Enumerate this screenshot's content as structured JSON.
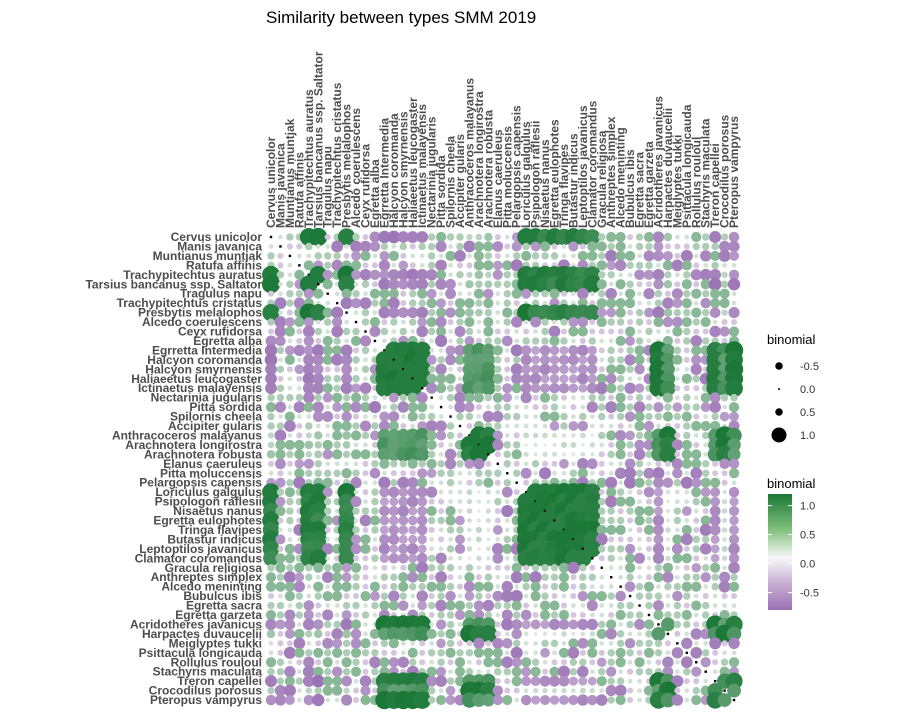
{
  "chart_data": {
    "type": "heatmap",
    "title": "Similarity between types SMM 2019",
    "labels": [
      "Cervus unicolor",
      "Manis javanica",
      "Muntianus muntjak",
      "Ratufa affinis",
      "Trachypitechtus auratus",
      "Tarsius bancanus ssp. Saltator",
      "Tragulus napu",
      "Trachypitechtus cristatus",
      "Presbytis melalophos",
      "Alcedo coerulescens",
      "Ceyx rufidorsa",
      "Egretta alba",
      "Egrretta Intermedia",
      "Halcyon coromanda",
      "Halcyon smyrnensis",
      "Haliaeetus leucogaster",
      "Ictinaetus malayensis",
      "Nectarinia jugularis",
      "Pitta sordida",
      "Spilornis cheela",
      "Accipiter gularis",
      "Anthracoceros malayanus",
      "Arachnotera longirostra",
      "Arachnotera robusta",
      "Elanus caeruleus",
      "Pitta moluccensis",
      "Pelargopsis capensis",
      "Loriculus galgulus",
      "Psipologon raflesii",
      "Nisaetus nanus",
      "Egretta eulophotes",
      "Tringa flavipes",
      "Butastur indicus",
      "Leptoptilos javanicus",
      "Clamator coromandus",
      "Gracula religiosa",
      "Anthreptes simplex",
      "Alcedo meninting",
      "Bubulcus ibis",
      "Egretta sacra",
      "Egretta garzeta",
      "Acridotheres javanicus",
      "Harpactes duvaucelii",
      "Meiglyptes tukki",
      "Psittacula longicauda",
      "Rollulus rouloul",
      "Stachyris maculata",
      "Treron capellei",
      "Crocodilus porosus",
      "Pteropus vampyrus"
    ],
    "groups": {
      "a": [
        0,
        4,
        5,
        8
      ],
      "b": [
        27,
        28,
        29,
        30,
        31,
        32,
        33,
        34
      ],
      "c": [
        12,
        13,
        14,
        15,
        16,
        41,
        47,
        49
      ],
      "d": [
        21,
        22,
        23,
        42,
        48
      ]
    },
    "group_relations": {
      "a-b": 1.1,
      "c-d": 0.9,
      "a-c": -0.7,
      "b-c": -0.6,
      "b-d": 0.2,
      "a-d": 0.4
    },
    "scale_range": [
      -0.8,
      1.2
    ],
    "colors": {
      "neg": "#9b73b5",
      "mid": "#f7f7f7",
      "pos": "#1b7837"
    },
    "color_legend": {
      "title": "binomial",
      "ticks": [
        1.0,
        0.5,
        0.0,
        -0.5
      ],
      "labels": [
        "1.0",
        "0.5",
        "0.0",
        "-0.5"
      ]
    },
    "size_legend": {
      "title": "binomial",
      "values": [
        -0.5,
        0.0,
        0.5,
        1.0
      ],
      "labels": [
        "-0.5",
        "0.0",
        "0.5",
        "1.0"
      ]
    }
  }
}
